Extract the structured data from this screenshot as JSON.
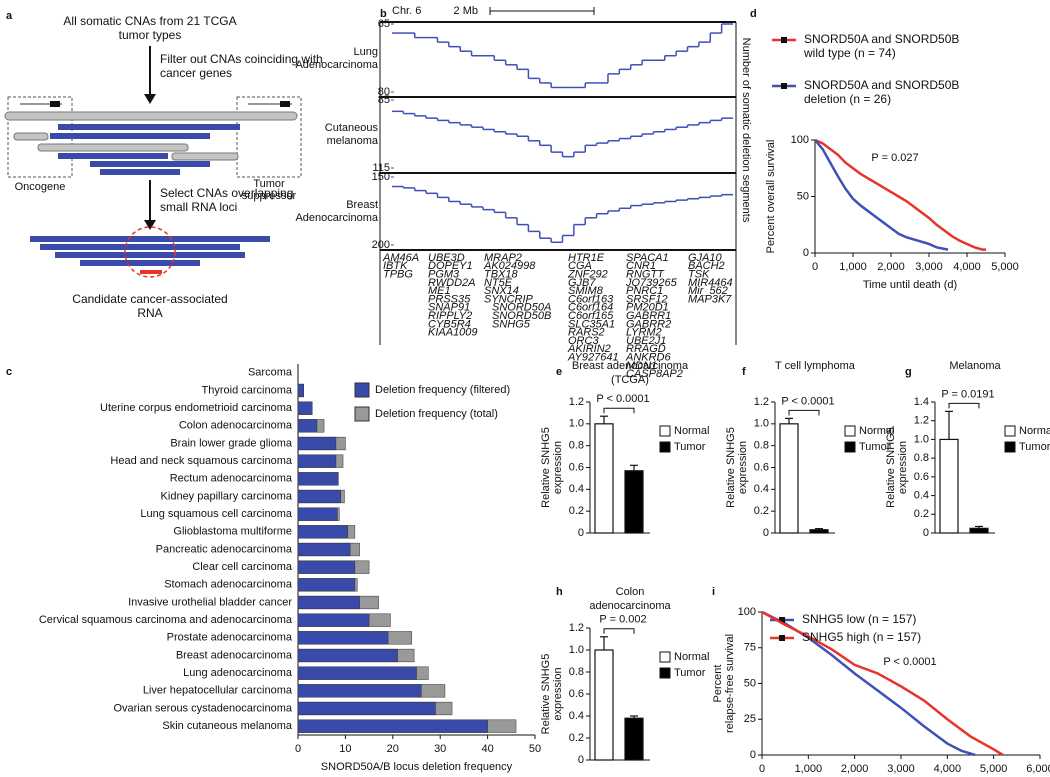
{
  "panels": [
    "a",
    "b",
    "c",
    "d",
    "e",
    "f",
    "g",
    "h",
    "i"
  ],
  "diagram": {
    "source": "All somatic CNAs from 21 TCGA tumor types",
    "filter": "Filter out CNAs coinciding with cancer genes",
    "oncogene": "Oncogene",
    "suppressor": "Tumor suppressor",
    "select": "Select CNAs overlapping small RNA loci",
    "result": "Candidate cancer-associated RNA"
  },
  "genome": {
    "chromosome": "Chr. 6",
    "scale": "2 Mb",
    "axis_label": "Number of somatic deletion segments",
    "genes": [
      [
        "AM46A",
        "IBTK",
        "TPBG"
      ],
      [
        "UBE3D",
        "DOPEY1",
        "PGM3",
        "RWDD2A",
        "ME1",
        "PRSS35",
        "SNAP91",
        "RIPPLY2",
        "CYB5R4",
        "KIAA1009"
      ],
      [
        "MRAP2",
        "AK024998",
        "TBX18",
        "NT5E",
        "SNX14",
        "SYNCRIP"
      ],
      [
        "HTR1E",
        "CGA",
        "ZNF292",
        "GJB7",
        "SMIM8",
        "C6orf163",
        "C6orf164",
        "C6orf165",
        "SLC35A1",
        "RARS2",
        "ORC3",
        "AKIRIN2",
        "AY927641"
      ],
      [
        "SPACA1",
        "CNR1",
        "RNGTT",
        "JQ739265",
        "PNRC1",
        "SRSF12",
        "PM20D1",
        "GABRR1",
        "GABRR2",
        "LYRM2",
        "UBE2J1",
        "RRAGD",
        "ANKRD6",
        "MDN1",
        "CASP8AP2"
      ],
      [
        "GJA10",
        "BACH2",
        "TSK",
        "MIR4464",
        "Mir_562",
        "MAP3K7"
      ]
    ],
    "highlighted_genes": [
      "SNORD50A",
      "SNORD50B",
      "SNHG5"
    ],
    "highlight_color": "#e8332a"
  },
  "chart_data": [
    {
      "type": "step",
      "title": [
        "Lung",
        "Adenocarcinoma"
      ],
      "color": "#3f4fb6",
      "ylim": [
        80,
        65
      ],
      "yticks": [
        65,
        80
      ],
      "values": [
        67,
        67,
        68,
        68,
        69,
        70,
        71,
        72,
        72,
        73,
        74,
        75,
        77,
        78,
        79,
        79,
        79,
        78,
        78,
        76,
        75,
        74,
        73,
        73,
        72,
        71,
        70,
        69,
        67,
        65
      ]
    },
    {
      "type": "step",
      "title": [
        "Cutaneous",
        "melanoma"
      ],
      "color": "#3f4fb6",
      "ylim": [
        115,
        85
      ],
      "yticks": [
        85,
        115
      ],
      "values": [
        90,
        91,
        92,
        93,
        94,
        95,
        96,
        97,
        98,
        99,
        100,
        101,
        103,
        105,
        108,
        110,
        108,
        105,
        104,
        103,
        102,
        101,
        100,
        99,
        98,
        97,
        96,
        95,
        94,
        93
      ]
    },
    {
      "type": "step",
      "title": [
        "Breast",
        "Adenocarcinoma"
      ],
      "color": "#3f4fb6",
      "ylim": [
        200,
        150
      ],
      "yticks": [
        150,
        200
      ],
      "values": [
        157,
        158,
        160,
        162,
        165,
        168,
        170,
        172,
        174,
        176,
        180,
        185,
        190,
        195,
        198,
        193,
        185,
        180,
        177,
        175,
        173,
        171,
        170,
        169,
        168,
        167,
        166,
        165,
        164,
        163
      ]
    },
    {
      "type": "barh",
      "categories": [
        "Sarcoma",
        "Thyroid carcinoma",
        "Uterine corpus endometrioid carcinoma",
        "Colon adenocarcinoma",
        "Brain lower grade glioma",
        "Head and neck squamous carcinoma",
        "Rectum adenocarcinoma",
        "Kidney papillary carcinoma",
        "Lung squamous cell carcinoma",
        "Glioblastoma multiforme",
        "Pancreatic adenocarcinoma",
        "Clear cell carcinoma",
        "Stomach adenocarcinoma",
        "Invasive urothelial bladder cancer",
        "Cervical squamous carcinoma and adenocarcinoma",
        "Prostate adenocarcinoma",
        "Breast adenocarcinoma",
        "Lung adenocarcinoma",
        "Liver hepatocellular carcinoma",
        "Ovarian serous cystadenocarcinoma",
        "Skin cutaneous melanoma"
      ],
      "series": [
        {
          "name": "Deletion frequency (filtered)",
          "color": "#3a4aa8",
          "values": [
            0,
            1.2,
            3,
            4,
            8,
            8,
            8.5,
            9,
            8.3,
            10.5,
            11,
            12,
            12,
            13,
            15,
            19,
            21,
            25,
            26,
            29,
            40
          ]
        },
        {
          "name": "Deletion frequency (total)",
          "color": "#999999",
          "values": [
            0,
            1.2,
            3,
            5.5,
            10,
            9.5,
            8.5,
            9.8,
            8.7,
            12,
            13,
            15,
            12.5,
            17,
            19.5,
            24,
            24.5,
            27.5,
            31,
            32.5,
            46
          ]
        }
      ],
      "xlim": [
        0,
        50
      ],
      "xticks": [
        0,
        10,
        20,
        30,
        40,
        50
      ],
      "xlabel": "SNORD50A/B locus deletion frequency"
    },
    {
      "type": "line",
      "series": [
        {
          "name": "SNORD50A and SNORD50B wild type (n = 74)",
          "color": "#e8332a",
          "x": [
            0,
            200,
            400,
            600,
            800,
            1000,
            1200,
            1400,
            1600,
            1800,
            2000,
            2200,
            2400,
            2600,
            2800,
            3000,
            3200,
            3400,
            3600,
            3800,
            4000,
            4200,
            4400,
            4500
          ],
          "values": [
            100,
            97,
            92,
            87,
            80,
            75,
            70,
            66,
            62,
            58,
            54,
            50,
            46,
            41,
            36,
            31,
            25,
            20,
            15,
            11,
            8,
            5,
            3,
            3
          ]
        },
        {
          "name": "SNORD50A and SNORD50B deletion (n = 26)",
          "color": "#3f51b5",
          "x": [
            0,
            200,
            400,
            600,
            800,
            1000,
            1200,
            1400,
            1600,
            1800,
            2000,
            2200,
            2400,
            2600,
            2800,
            3000,
            3200,
            3500
          ],
          "values": [
            100,
            92,
            80,
            68,
            57,
            48,
            42,
            37,
            32,
            27,
            22,
            17,
            14,
            12,
            10,
            8,
            5,
            3
          ]
        }
      ],
      "xlim": [
        0,
        5000
      ],
      "xticks": [
        0,
        {
          "value": 1000,
          "label": "1,000"
        },
        {
          "value": 2000,
          "label": "2,000"
        },
        {
          "value": 3000,
          "label": "3,000"
        },
        {
          "value": 4000,
          "label": "4,000"
        },
        {
          "value": 5000,
          "label": "5,000"
        }
      ],
      "ylim": [
        0,
        100
      ],
      "yticks": [
        0,
        50,
        100
      ],
      "xlabel": "Time until death (d)",
      "ylabel": [
        "Percent overall survival"
      ],
      "annotation": "P = 0.027"
    },
    {
      "type": "bar",
      "title": [
        "Breast adenocarcinoma",
        "(TCGA)"
      ],
      "series": [
        {
          "name": "Normal",
          "color": "#ffffff",
          "values": [
            1.0
          ],
          "errors": [
            0.07
          ]
        },
        {
          "name": "Tumor",
          "color": "#000000",
          "values": [
            0.57
          ],
          "errors": [
            0.05
          ]
        }
      ],
      "ylim": [
        0,
        1.2
      ],
      "yticks": [
        0,
        0.2,
        0.4,
        0.6,
        0.8,
        {
          "value": 1,
          "label": "1.0"
        },
        1.2
      ],
      "ylabel": [
        "Relative SNHG5",
        "expression"
      ],
      "annotation": "P < 0.0001"
    },
    {
      "type": "bar",
      "title": [
        "T cell lymphoma"
      ],
      "series": [
        {
          "name": "Normal",
          "color": "#ffffff",
          "values": [
            1.0
          ],
          "errors": [
            0.05
          ]
        },
        {
          "name": "Tumor",
          "color": "#000000",
          "values": [
            0.03
          ],
          "errors": [
            0.01
          ]
        }
      ],
      "ylim": [
        0,
        1.2
      ],
      "yticks": [
        0,
        0.2,
        0.4,
        0.6,
        0.8,
        {
          "value": 1,
          "label": "1.0"
        },
        1.2
      ],
      "ylabel": [
        "Relative SNHG5",
        "expression"
      ],
      "annotation": "P < 0.0001"
    },
    {
      "type": "bar",
      "title": [
        "Melanoma"
      ],
      "series": [
        {
          "name": "Normal",
          "color": "#ffffff",
          "values": [
            1.0
          ],
          "errors": [
            0.3
          ]
        },
        {
          "name": "Tumor",
          "color": "#000000",
          "values": [
            0.05
          ],
          "errors": [
            0.02
          ]
        }
      ],
      "ylim": [
        0,
        1.4
      ],
      "yticks": [
        0,
        0.2,
        0.4,
        0.6,
        0.8,
        {
          "value": 1,
          "label": "1.0"
        },
        1.2,
        1.4
      ],
      "ylabel": [
        "Relative SNHG5",
        "expression"
      ],
      "annotation": "P = 0.0191"
    },
    {
      "type": "bar",
      "title": [
        "Colon",
        "adenocarcinoma"
      ],
      "series": [
        {
          "name": "Normal",
          "color": "#ffffff",
          "values": [
            1.0
          ],
          "errors": [
            0.12
          ]
        },
        {
          "name": "Tumor",
          "color": "#000000",
          "values": [
            0.38
          ],
          "errors": [
            0.02
          ]
        }
      ],
      "ylim": [
        0,
        1.2
      ],
      "yticks": [
        0,
        0.2,
        0.4,
        0.6,
        0.8,
        {
          "value": 1,
          "label": "1.0"
        },
        1.2
      ],
      "ylabel": [
        "Relative SNHG5",
        "expression"
      ],
      "annotation": "P = 0.002"
    },
    {
      "type": "line",
      "series": [
        {
          "name": "SNHG5 low (n = 157)",
          "color": "#3f51b5",
          "x": [
            0,
            500,
            1000,
            1500,
            2000,
            2500,
            3000,
            3500,
            4000,
            4300,
            4600
          ],
          "values": [
            100,
            92,
            82,
            70,
            57,
            45,
            33,
            20,
            8,
            3,
            0
          ]
        },
        {
          "name": "SNHG5 high (n = 157)",
          "color": "#e8332a",
          "x": [
            0,
            500,
            1000,
            1500,
            2000,
            2500,
            3000,
            3500,
            4000,
            4500,
            5000,
            5200
          ],
          "values": [
            100,
            91,
            83,
            74,
            63,
            57,
            48,
            38,
            25,
            13,
            4,
            0
          ]
        }
      ],
      "xlim": [
        0,
        6000
      ],
      "xticks": [
        0,
        {
          "value": 1000,
          "label": "1,000"
        },
        {
          "value": 2000,
          "label": "2,000"
        },
        {
          "value": 3000,
          "label": "3,000"
        },
        {
          "value": 4000,
          "label": "4,000"
        },
        {
          "value": 5000,
          "label": "5,000"
        },
        {
          "value": 6000,
          "label": "6,000"
        }
      ],
      "ylim": [
        0,
        100
      ],
      "yticks": [
        0,
        25,
        50,
        75,
        100
      ],
      "xlabel": "Days to event",
      "ylabel": [
        "Percent",
        "relapse-free survival"
      ],
      "annotation": "P < 0.0001"
    }
  ]
}
